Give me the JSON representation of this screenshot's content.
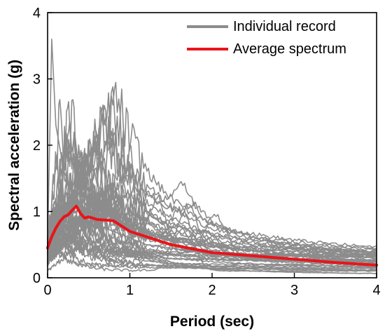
{
  "chart_data": {
    "type": "line",
    "title": "",
    "xlabel": "Period (sec)",
    "ylabel": "Spectral acceleration (g)",
    "xlim": [
      0,
      4
    ],
    "ylim": [
      0,
      4
    ],
    "xticks": [
      0,
      1,
      2,
      3,
      4
    ],
    "yticks": [
      0,
      1,
      2,
      3,
      4
    ],
    "xtick_labels": [
      "0",
      "1",
      "2",
      "3",
      "4"
    ],
    "ytick_labels": [
      "0",
      "1",
      "2",
      "3",
      "4"
    ],
    "grid": false,
    "legend_position": "top-right",
    "colors": {
      "records": "#8c8c8c",
      "average": "#e8151b"
    },
    "series": [
      {
        "name": "Individual record",
        "group": "records",
        "note": "one of ~44 individual ground-motion spectra",
        "x": [
          0,
          0.05,
          0.1,
          0.2,
          0.3,
          0.4,
          0.5,
          0.6,
          0.7,
          0.8,
          1.0,
          1.2,
          1.5,
          2.0,
          2.5,
          3.0,
          3.5,
          4.0
        ],
        "y": [
          0.5,
          3.6,
          2.3,
          1.6,
          1.3,
          1.1,
          0.9,
          0.8,
          0.75,
          0.7,
          0.6,
          0.5,
          0.45,
          0.35,
          0.3,
          0.25,
          0.22,
          0.2
        ]
      },
      {
        "name": "Average spectrum",
        "group": "average",
        "x": [
          0,
          0.05,
          0.1,
          0.15,
          0.2,
          0.25,
          0.3,
          0.35,
          0.4,
          0.45,
          0.5,
          0.6,
          0.7,
          0.8,
          0.9,
          1.0,
          1.2,
          1.5,
          2.0,
          2.5,
          3.0,
          3.5,
          4.0
        ],
        "y": [
          0.45,
          0.62,
          0.75,
          0.85,
          0.92,
          0.95,
          1.02,
          1.08,
          0.97,
          0.9,
          0.92,
          0.88,
          0.87,
          0.86,
          0.78,
          0.7,
          0.62,
          0.5,
          0.38,
          0.33,
          0.28,
          0.23,
          0.19
        ]
      }
    ],
    "legend": [
      {
        "label": "Individual record",
        "group": "records"
      },
      {
        "label": "Average spectrum",
        "group": "average"
      }
    ]
  }
}
